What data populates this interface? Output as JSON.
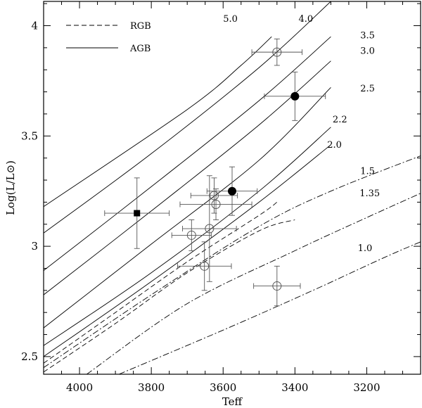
{
  "chart_data": {
    "type": "line",
    "xlabel": "Teff",
    "ylabel": "Log(L/L⊙)",
    "xlim": [
      4100,
      3050
    ],
    "ylim": [
      2.42,
      4.11
    ],
    "x_ticks": [
      4000,
      3800,
      3600,
      3400,
      3200
    ],
    "x_tick_labels": [
      "4000",
      "3800",
      "3600",
      "3400",
      "3200"
    ],
    "y_ticks": [
      2.5,
      3,
      3.5,
      4
    ],
    "y_tick_labels": [
      "2.5",
      "3",
      "3.5",
      "4"
    ],
    "legend": {
      "placement": "top-left",
      "entries": [
        {
          "label": "RGB",
          "style": "dashed"
        },
        {
          "label": "AGB",
          "style": "solid"
        }
      ]
    },
    "tracks": [
      {
        "mass": "5.0",
        "style": "solid",
        "points": [
          [
            4100,
            3.18
          ],
          [
            3700,
            3.62
          ],
          [
            3550,
            3.82
          ],
          [
            3465,
            3.95
          ]
        ],
        "label_at": [
          3600,
          4.03
        ]
      },
      {
        "mass": "4.0",
        "style": "solid",
        "points": [
          [
            4100,
            3.06
          ],
          [
            3800,
            3.42
          ],
          [
            3500,
            3.81
          ],
          [
            3300,
            4.11
          ]
        ],
        "label_at": [
          3390,
          4.03
        ]
      },
      {
        "mass": "3.5",
        "style": "solid",
        "points": [
          [
            4100,
            2.89
          ],
          [
            3800,
            3.27
          ],
          [
            3500,
            3.66
          ],
          [
            3300,
            3.95
          ]
        ],
        "label_at": [
          3218,
          3.955
        ]
      },
      {
        "mass": "3.0",
        "style": "solid",
        "points": [
          [
            4100,
            2.78
          ],
          [
            3800,
            3.16
          ],
          [
            3500,
            3.55
          ],
          [
            3300,
            3.84
          ]
        ],
        "label_at": [
          3218,
          3.885
        ]
      },
      {
        "mass": "2.5",
        "style": "solid",
        "points": [
          [
            4100,
            2.63
          ],
          [
            3800,
            3.01
          ],
          [
            3500,
            3.39
          ],
          [
            3300,
            3.72
          ]
        ],
        "label_at": [
          3218,
          3.715
        ]
      },
      {
        "mass": "2.2",
        "style": "solid",
        "points": [
          [
            4100,
            2.55
          ],
          [
            3800,
            2.88
          ],
          [
            3500,
            3.25
          ],
          [
            3300,
            3.54
          ]
        ],
        "label_at": [
          3295,
          3.575
        ]
      },
      {
        "mass": "2.0",
        "style": "solid",
        "points": [
          [
            4100,
            2.5
          ],
          [
            3800,
            2.84
          ],
          [
            3500,
            3.2
          ],
          [
            3300,
            3.46
          ]
        ],
        "label_at": [
          3310,
          3.46
        ]
      },
      {
        "mass": "1.5",
        "style": "dash-dot",
        "points": [
          [
            4100,
            2.45
          ],
          [
            3800,
            2.78
          ],
          [
            3500,
            3.09
          ],
          [
            3300,
            3.25
          ],
          [
            3050,
            3.41
          ]
        ],
        "label_at": [
          3218,
          3.34
        ]
      },
      {
        "mass": "1.35",
        "style": "dash-dot",
        "points": [
          [
            3980,
            2.42
          ],
          [
            3700,
            2.74
          ],
          [
            3400,
            2.98
          ],
          [
            3200,
            3.13
          ],
          [
            3050,
            3.24
          ]
        ],
        "label_at": [
          3220,
          3.24
        ]
      },
      {
        "mass": "1.0",
        "style": "dash-dot",
        "points": [
          [
            3890,
            2.42
          ],
          [
            3600,
            2.62
          ],
          [
            3350,
            2.8
          ],
          [
            3150,
            2.95
          ],
          [
            3050,
            3.02
          ]
        ],
        "label_at": [
          3225,
          2.99
        ]
      }
    ],
    "rgb_tracks": [
      {
        "style": "dashed",
        "points": [
          [
            4100,
            2.47
          ],
          [
            3900,
            2.7
          ],
          [
            3700,
            2.93
          ],
          [
            3500,
            3.14
          ],
          [
            3450,
            3.2
          ]
        ]
      },
      {
        "style": "dashed",
        "points": [
          [
            4100,
            2.43
          ],
          [
            3900,
            2.65
          ],
          [
            3700,
            2.88
          ],
          [
            3500,
            3.07
          ],
          [
            3400,
            3.12
          ]
        ]
      }
    ],
    "observations": [
      {
        "marker": "filled-square",
        "teff": 3840,
        "teff_err": 90,
        "logL": 3.15,
        "logL_err": [
          0.16,
          0.16
        ]
      },
      {
        "marker": "filled-circle",
        "teff": 3400,
        "teff_err": 85,
        "logL": 3.68,
        "logL_err": [
          0.11,
          0.11
        ]
      },
      {
        "marker": "filled-circle",
        "teff": 3575,
        "teff_err": 70,
        "logL": 3.25,
        "logL_err": [
          0.11,
          0.11
        ]
      },
      {
        "marker": "open-circle",
        "teff": 3450,
        "teff_err": 70,
        "logL": 3.88,
        "logL_err": [
          0.06,
          0.06
        ]
      },
      {
        "marker": "open-circle",
        "teff": 3625,
        "teff_err": 65,
        "logL": 3.23,
        "logL_err": [
          0.08,
          0.08
        ]
      },
      {
        "marker": "open-circle",
        "teff": 3620,
        "teff_err": 100,
        "logL": 3.19,
        "logL_err": [
          0.07,
          0.07
        ]
      },
      {
        "marker": "open-circle",
        "teff": 3688,
        "teff_err": 55,
        "logL": 3.05,
        "logL_err": [
          0.07,
          0.07
        ]
      },
      {
        "marker": "open-circle",
        "teff": 3638,
        "teff_err": 75,
        "logL": 3.08,
        "logL_err": [
          0.24,
          0.24
        ]
      },
      {
        "marker": "open-circle",
        "teff": 3652,
        "teff_err": 75,
        "logL": 2.91,
        "logL_err": [
          0.11,
          0.11
        ]
      },
      {
        "marker": "open-circle",
        "teff": 3450,
        "teff_err": 65,
        "logL": 2.82,
        "logL_err": [
          0.09,
          0.09
        ]
      }
    ]
  }
}
